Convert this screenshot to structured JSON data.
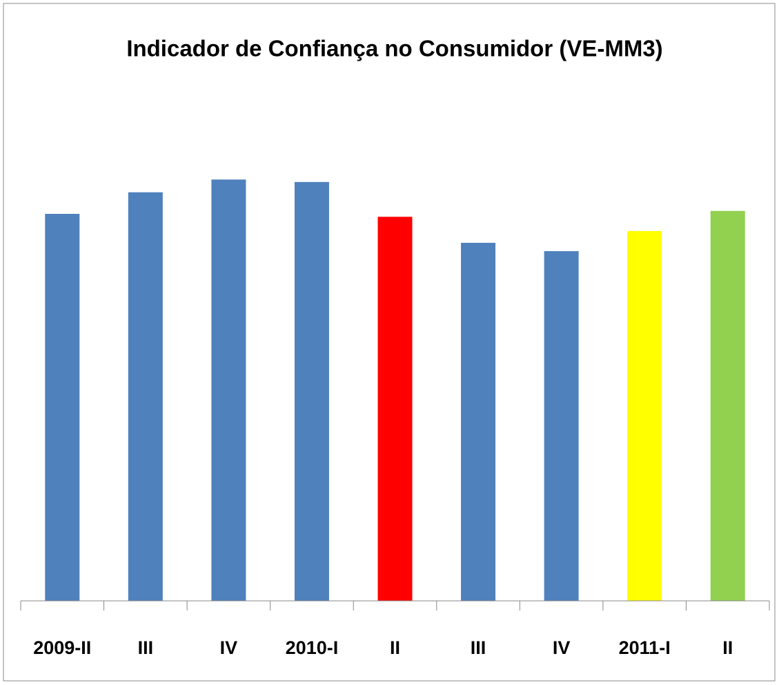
{
  "chart_data": {
    "type": "bar",
    "title": "Indicador de Confiança no Consumidor (VE-MM3)",
    "categories": [
      "2009-II",
      "III",
      "IV",
      "2010-I",
      "II",
      "III",
      "IV",
      "2011-I",
      "II"
    ],
    "values": [
      78.9,
      83.3,
      85.9,
      85.4,
      78.3,
      73.0,
      71.3,
      75.4,
      79.5
    ],
    "colors": [
      "#4f81bd",
      "#4f81bd",
      "#4f81bd",
      "#4f81bd",
      "#ff0000",
      "#4f81bd",
      "#4f81bd",
      "#ffff00",
      "#92d050"
    ],
    "ylim": [
      0,
      100
    ]
  }
}
